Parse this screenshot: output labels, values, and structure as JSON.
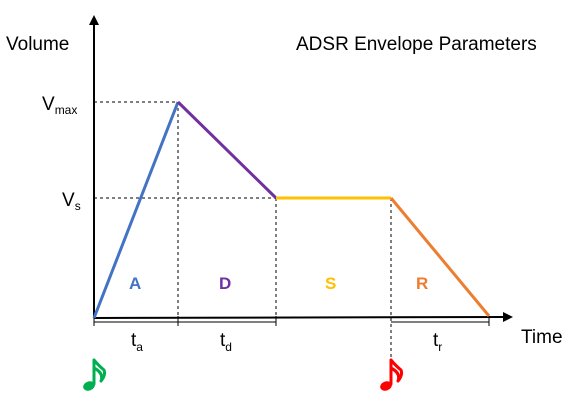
{
  "diagram": {
    "title": "ADSR Envelope Parameters",
    "axes": {
      "y_label": "Volume",
      "x_label": "Time"
    },
    "levels": {
      "vmax": {
        "main": "V",
        "sub": "max"
      },
      "vs": {
        "main": "V",
        "sub": "s"
      }
    },
    "phases": [
      {
        "key": "attack",
        "label": "A",
        "color": "#4472C4"
      },
      {
        "key": "decay",
        "label": "D",
        "color": "#7030A0"
      },
      {
        "key": "sustain",
        "label": "S",
        "color": "#FFC000"
      },
      {
        "key": "release",
        "label": "R",
        "color": "#ED7D31"
      }
    ],
    "durations": {
      "ta": {
        "main": "t",
        "sub": "a"
      },
      "td": {
        "main": "t",
        "sub": "d"
      },
      "tr": {
        "main": "t",
        "sub": "r"
      }
    },
    "events": {
      "note_on": {
        "icon": "music-note-icon",
        "color": "#00B050"
      },
      "note_off": {
        "icon": "music-note-icon",
        "color": "#FF0000"
      }
    }
  }
}
